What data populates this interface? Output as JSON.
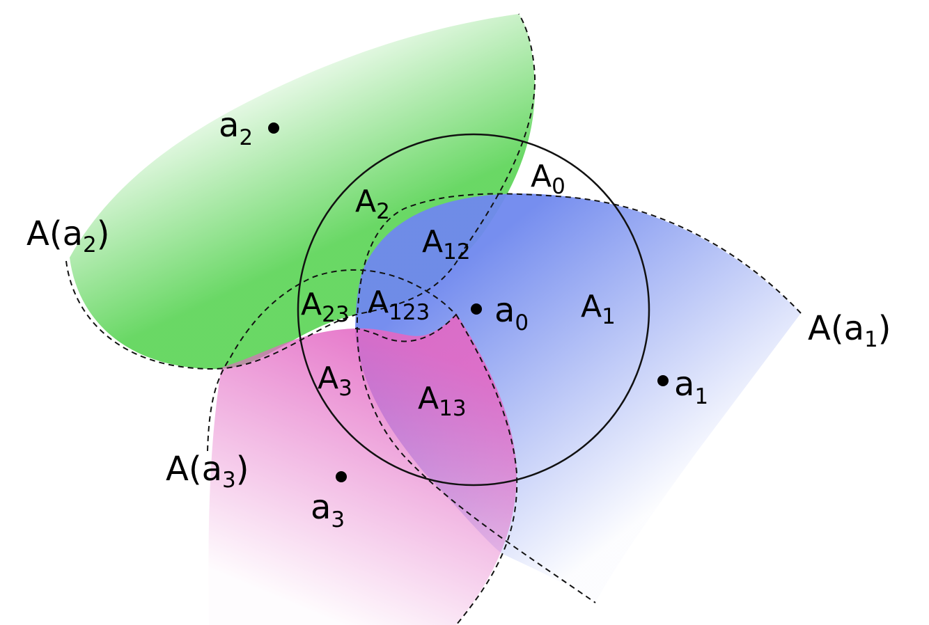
{
  "colors": {
    "green": "#4fd14a",
    "blue": "#6f88ee",
    "magenta": "#e368c4",
    "line": "#111111"
  },
  "labels": {
    "a0": {
      "base": "a",
      "sub": "0"
    },
    "a1": {
      "base": "a",
      "sub": "1"
    },
    "a2": {
      "base": "a",
      "sub": "2"
    },
    "a3": {
      "base": "a",
      "sub": "3"
    },
    "A0": {
      "base": "A",
      "sub": "0"
    },
    "A1": {
      "base": "A",
      "sub": "1"
    },
    "A2": {
      "base": "A",
      "sub": "2"
    },
    "A3": {
      "base": "A",
      "sub": "3"
    },
    "A12": {
      "base": "A",
      "sub": "12"
    },
    "A13": {
      "base": "A",
      "sub": "13"
    },
    "A23": {
      "base": "A",
      "sub": "23"
    },
    "A123": {
      "base": "A",
      "sub": "123"
    },
    "Aa1": {
      "base": "A(a",
      "sub": "1",
      "tail": ")"
    },
    "Aa2": {
      "base": "A(a",
      "sub": "2",
      "tail": ")"
    },
    "Aa3": {
      "base": "A(a",
      "sub": "3",
      "tail": ")"
    }
  }
}
